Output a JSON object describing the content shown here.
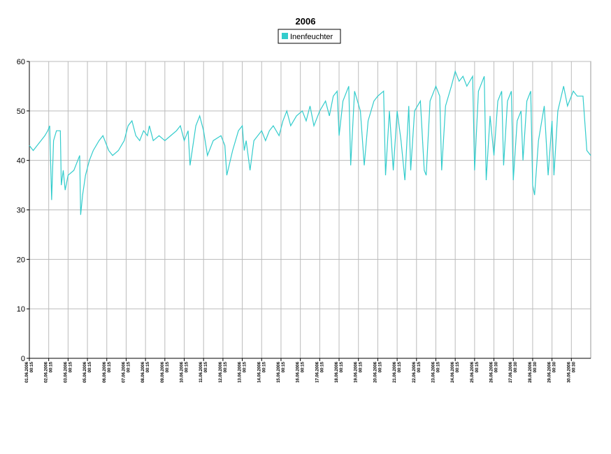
{
  "chart_data": {
    "type": "line",
    "title": "2006",
    "x": [
      0,
      0.2,
      0.4,
      0.6,
      0.8,
      0.95,
      1.05,
      1.15,
      1.25,
      1.4,
      1.6,
      1.65,
      1.75,
      1.85,
      2.0,
      2.3,
      2.5,
      2.6,
      2.65,
      2.75,
      2.9,
      3.1,
      3.3,
      3.6,
      3.8,
      4.1,
      4.3,
      4.6,
      4.9,
      5.1,
      5.3,
      5.5,
      5.7,
      5.9,
      6.1,
      6.2,
      6.4,
      6.7,
      7.0,
      7.3,
      7.6,
      7.8,
      8.0,
      8.2,
      8.3,
      8.6,
      8.8,
      9.0,
      9.2,
      9.5,
      9.9,
      10.1,
      10.2,
      10.5,
      10.8,
      11.0,
      11.1,
      11.2,
      11.4,
      11.6,
      12.0,
      12.2,
      12.4,
      12.6,
      12.9,
      13.1,
      13.3,
      13.5,
      13.8,
      14.1,
      14.3,
      14.5,
      14.7,
      15.0,
      15.3,
      15.5,
      15.7,
      15.9,
      16.0,
      16.2,
      16.5,
      16.6,
      16.8,
      17.1,
      17.3,
      17.5,
      17.8,
      18.0,
      18.3,
      18.4,
      18.6,
      18.8,
      19.0,
      19.2,
      19.4,
      19.6,
      19.7,
      19.9,
      20.2,
      20.4,
      20.5,
      20.7,
      21.0,
      21.2,
      21.3,
      21.5,
      21.8,
      22.0,
      22.2,
      22.4,
      22.6,
      22.9,
      23.0,
      23.2,
      23.5,
      23.6,
      23.8,
      24.0,
      24.2,
      24.4,
      24.5,
      24.7,
      24.9,
      25.0,
      25.2,
      25.4,
      25.5,
      25.7,
      25.9,
      26.0,
      26.1,
      26.3,
      26.6,
      26.8,
      27.0,
      27.1,
      27.3,
      27.6,
      27.8,
      28.1,
      28.3,
      28.6,
      28.8,
      29.0
    ],
    "series": [
      {
        "name": "Inenfeuchter",
        "color": "#33cccc",
        "values": [
          43,
          42,
          43,
          44,
          45,
          46,
          47,
          32,
          44,
          46,
          46,
          35,
          38,
          34,
          37,
          38,
          40,
          41,
          29,
          33,
          37,
          40,
          42,
          44,
          45,
          42,
          41,
          42,
          44,
          47,
          48,
          45,
          44,
          46,
          45,
          47,
          44,
          45,
          44,
          45,
          46,
          47,
          44,
          46,
          39,
          47,
          49,
          46,
          41,
          44,
          45,
          43,
          37,
          42,
          46,
          47,
          42,
          44,
          38,
          44,
          46,
          44,
          46,
          47,
          45,
          48,
          50,
          47,
          49,
          50,
          48,
          51,
          47,
          50,
          52,
          49,
          53,
          54,
          45,
          52,
          55,
          39,
          54,
          50,
          39,
          48,
          52,
          53,
          54,
          37,
          50,
          38,
          50,
          44,
          36,
          51,
          38,
          50,
          52,
          38,
          37,
          52,
          55,
          53,
          38,
          51,
          55,
          58,
          56,
          57,
          55,
          57,
          38,
          54,
          57,
          36,
          49,
          41,
          52,
          54,
          39,
          52,
          54,
          36,
          48,
          50,
          40,
          52,
          54,
          35,
          33,
          44,
          51,
          37,
          48,
          37,
          50,
          55,
          51,
          54,
          53,
          53,
          42,
          41
        ]
      }
    ],
    "xlim": [
      0,
      29
    ],
    "xticks": [
      {
        "value": 0,
        "label": "01.06.2006"
      },
      {
        "value": 1,
        "label": "02.06.2006"
      },
      {
        "value": 2,
        "label": "03.06.2006"
      },
      {
        "value": 3,
        "label": "05.06.2006"
      },
      {
        "value": 4,
        "label": "06.06.2006"
      },
      {
        "value": 5,
        "label": "07.06.2006"
      },
      {
        "value": 6,
        "label": "08.06.2006"
      },
      {
        "value": 7,
        "label": "09.06.2006"
      },
      {
        "value": 8,
        "label": "10.06.2006"
      },
      {
        "value": 9,
        "label": "11.06.2006"
      },
      {
        "value": 10,
        "label": "12.06.2006"
      },
      {
        "value": 11,
        "label": "13.06.2006"
      },
      {
        "value": 12,
        "label": "14.06.2006"
      },
      {
        "value": 13,
        "label": "15.06.2006"
      },
      {
        "value": 14,
        "label": "16.06.2006"
      },
      {
        "value": 15,
        "label": "17.06.2006"
      },
      {
        "value": 16,
        "label": "18.06.2006"
      },
      {
        "value": 17,
        "label": "19.06.2006"
      },
      {
        "value": 18,
        "label": "20.06.2006"
      },
      {
        "value": 19,
        "label": "21.06.2006"
      },
      {
        "value": 20,
        "label": "22.06.2006"
      },
      {
        "value": 21,
        "label": "23.06.2006"
      },
      {
        "value": 22,
        "label": "24.06.2006"
      },
      {
        "value": 23,
        "label": "25.06.2006"
      },
      {
        "value": 24,
        "label": "26.06.2006"
      },
      {
        "value": 25,
        "label": "27.06.2006"
      },
      {
        "value": 26,
        "label": "28.06.2006"
      },
      {
        "value": 27,
        "label": "29.06.2006"
      },
      {
        "value": 28,
        "label": "30.06.2006"
      }
    ],
    "xtick_times": [
      "00:15",
      "00:15",
      "00:15",
      "00:15",
      "00:15",
      "00:15",
      "00:15",
      "00:15",
      "00:15",
      "00:15",
      "00:15",
      "00:15",
      "00:15",
      "00:15",
      "00:15",
      "00:15",
      "00:15",
      "00:15",
      "00:15",
      "00:15",
      "00:15",
      "00:15",
      "00:15",
      "00:15",
      "00:30",
      "00:30",
      "00:30",
      "00:30",
      "00:30"
    ],
    "ylim": [
      0,
      60
    ],
    "yticks": [
      0,
      10,
      20,
      30,
      40,
      50,
      60
    ],
    "grid": true
  }
}
